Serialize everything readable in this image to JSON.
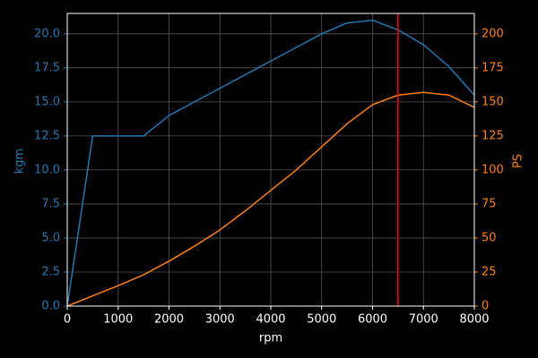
{
  "chart_data": {
    "type": "line",
    "x": [
      0,
      500,
      1000,
      1500,
      2000,
      2500,
      3000,
      3500,
      4000,
      4500,
      5000,
      5500,
      6000,
      6500,
      7000,
      7500,
      8000
    ],
    "series": [
      {
        "color": "#1f77b4",
        "axis": "y",
        "values": [
          0,
          12.5,
          12.5,
          12.5,
          14,
          15,
          16,
          17,
          18,
          19,
          20,
          20.8,
          21,
          20.3,
          19.2,
          17.6,
          15.5
        ]
      },
      {
        "color": "#ff7f0e",
        "axis": "y2",
        "values": [
          0,
          7.5,
          15,
          23,
          33,
          44,
          56,
          70,
          85,
          100,
          117,
          134,
          148,
          155,
          157,
          155,
          146
        ]
      }
    ],
    "xlabel": "rpm",
    "ylabel": "kgm",
    "y2label": "PS",
    "xlim": [
      0,
      8000
    ],
    "xticks": [
      0,
      1000,
      2000,
      3000,
      4000,
      5000,
      6000,
      7000,
      8000
    ],
    "ylim": [
      0,
      21.5
    ],
    "yticks": [
      {
        "value": 0,
        "label": "0.0"
      },
      {
        "value": 2.5,
        "label": "2.5"
      },
      {
        "value": 5,
        "label": "5.0"
      },
      {
        "value": 7.5,
        "label": "7.5"
      },
      {
        "value": 10,
        "label": "10.0"
      },
      {
        "value": 12.5,
        "label": "12.5"
      },
      {
        "value": 15,
        "label": "15.0"
      },
      {
        "value": 17.5,
        "label": "17.5"
      },
      {
        "value": 20,
        "label": "20.0"
      }
    ],
    "y2lim": [
      0,
      215
    ],
    "y2ticks": [
      0,
      25,
      50,
      75,
      100,
      125,
      150,
      175,
      200
    ],
    "grid": true,
    "vline": {
      "x": 6500,
      "color": "#ff0000"
    }
  }
}
